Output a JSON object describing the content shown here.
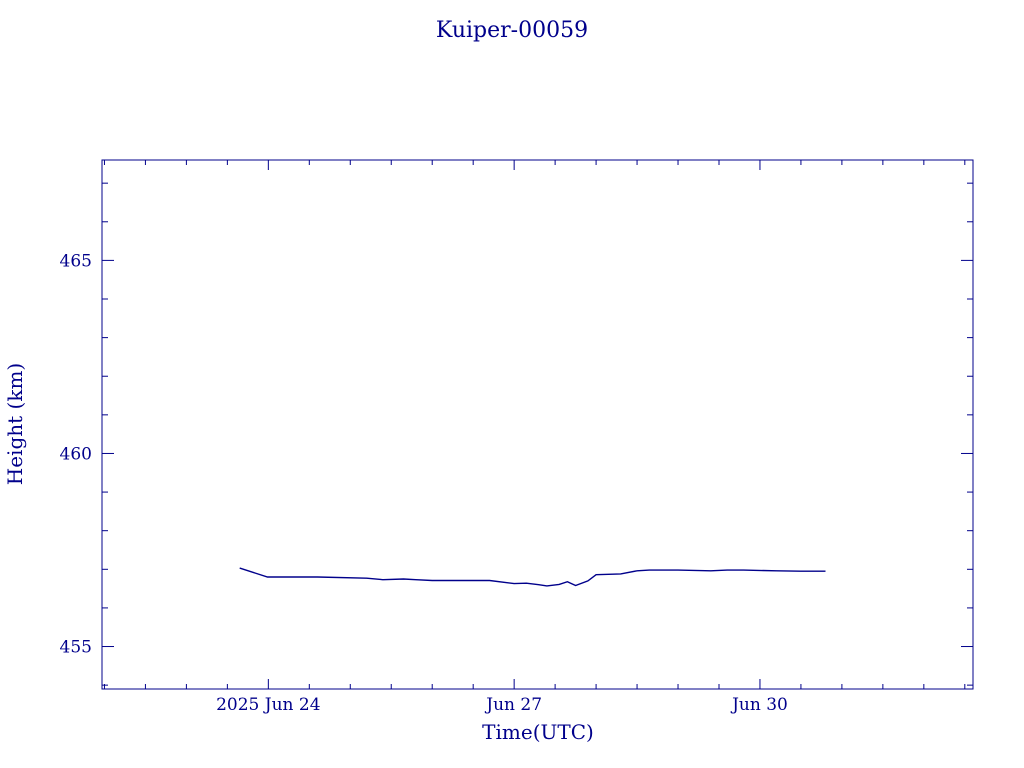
{
  "chart_data": {
    "type": "line",
    "title": "Kuiper-00059",
    "xlabel": "Time(UTC)",
    "ylabel": "Height (km)",
    "x_ticks": [
      {
        "label": "2025 Jun 24",
        "day": 24
      },
      {
        "label": "Jun 27",
        "day": 27
      },
      {
        "label": "Jun 30",
        "day": 30
      }
    ],
    "y_ticks": [
      {
        "label": "455",
        "value": 455
      },
      {
        "label": "460",
        "value": 460
      },
      {
        "label": "465",
        "value": 465
      }
    ],
    "xlim_day": [
      21.97,
      32.6
    ],
    "ylim": [
      453.9,
      467.6
    ],
    "grid": false,
    "series": [
      {
        "x_day": [
          23.65,
          23.99,
          24.6,
          25.2,
          25.4,
          25.65,
          25.8,
          26.0,
          26.5,
          26.7,
          27.0,
          27.15,
          27.3,
          27.4,
          27.55,
          27.65,
          27.75,
          27.9,
          28.0,
          28.3,
          28.5,
          28.65,
          29.0,
          29.4,
          29.6,
          29.8,
          30.2,
          30.5,
          30.8
        ],
        "y": [
          457.03,
          456.8,
          456.8,
          456.77,
          456.73,
          456.75,
          456.73,
          456.71,
          456.71,
          456.71,
          456.63,
          456.64,
          456.6,
          456.57,
          456.61,
          456.68,
          456.58,
          456.7,
          456.86,
          456.88,
          456.96,
          456.98,
          456.98,
          456.96,
          456.98,
          456.98,
          456.96,
          456.95,
          456.95
        ]
      }
    ]
  },
  "colors": {
    "ink": "#00008b",
    "background": "#ffffff"
  }
}
